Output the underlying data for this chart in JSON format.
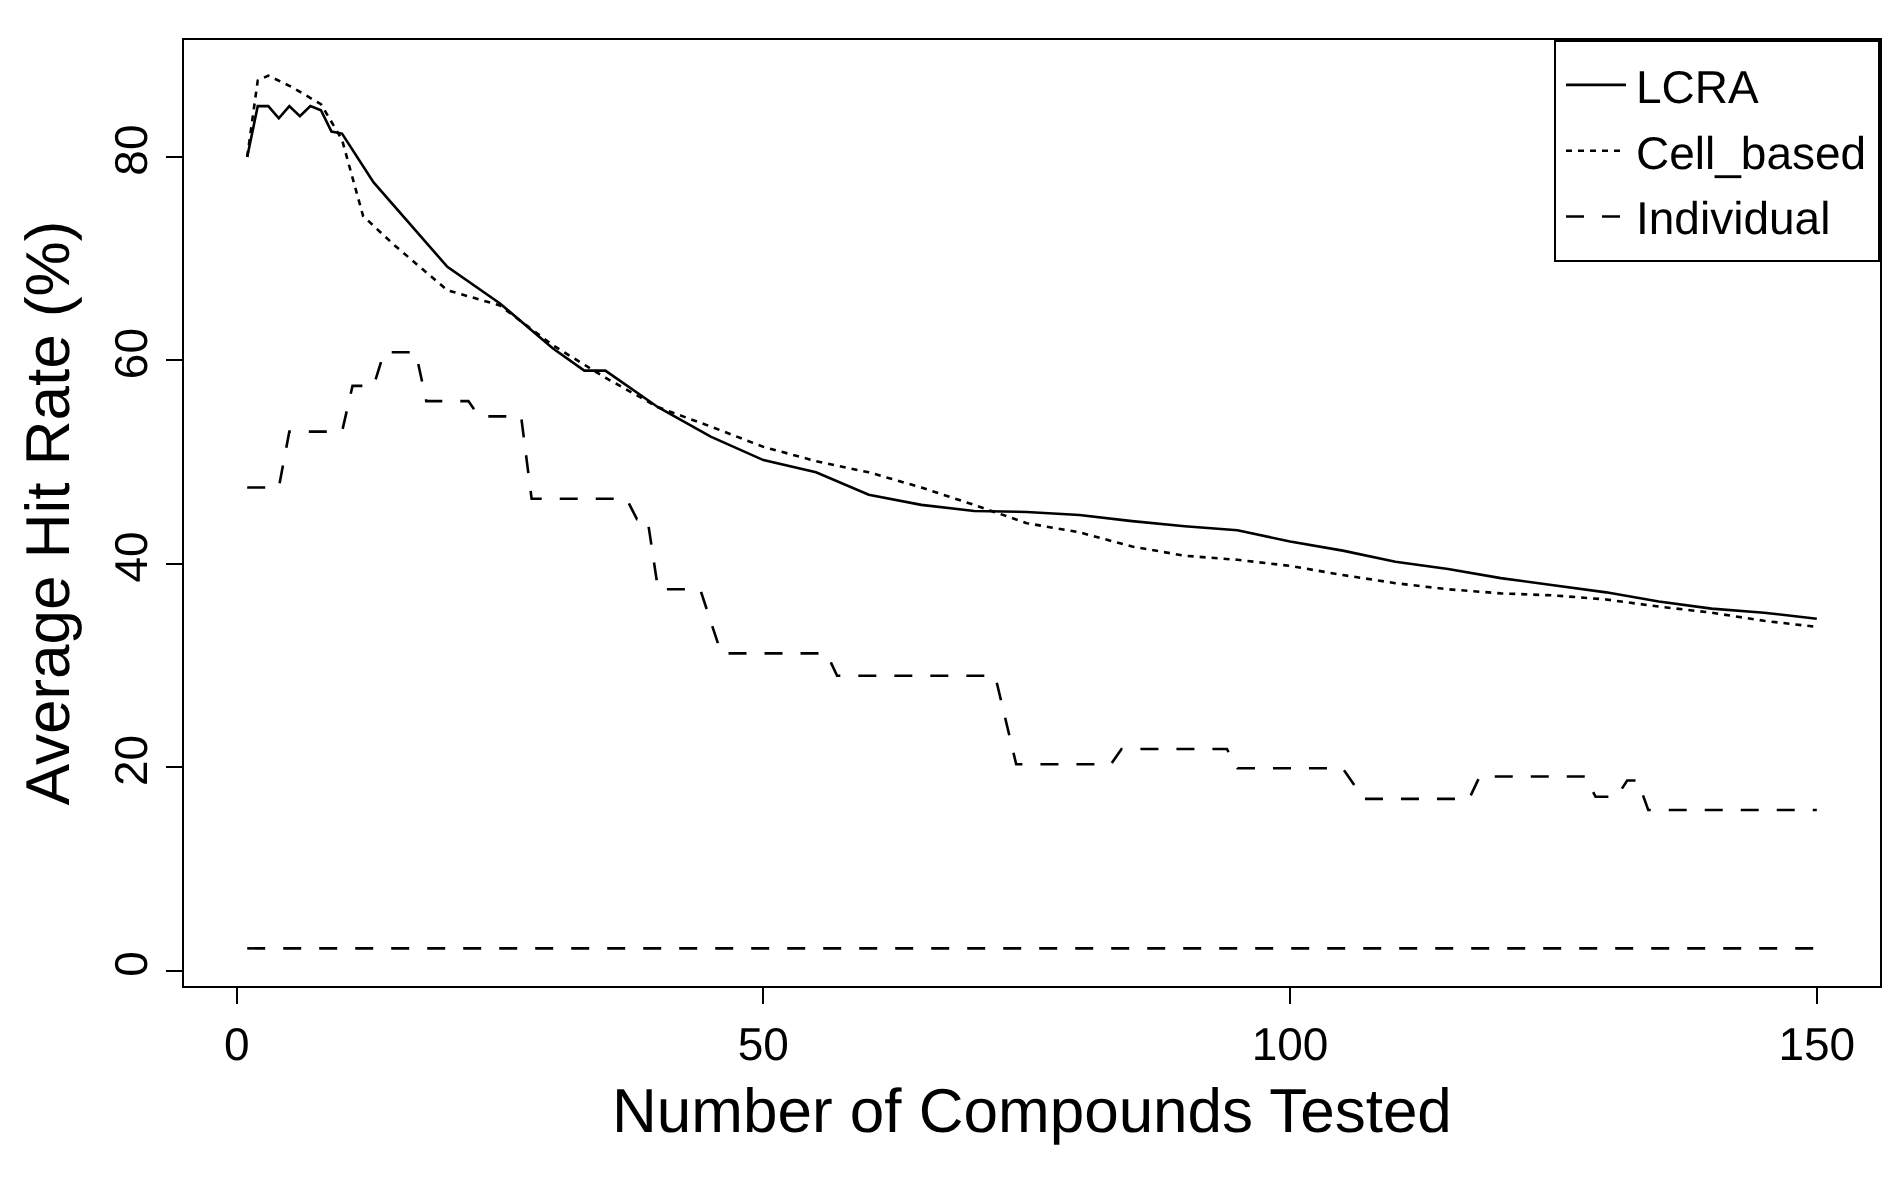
{
  "chart_data": {
    "type": "line",
    "xlabel": "Number of Compounds Tested",
    "ylabel": "Average Hit Rate (%)",
    "xlim": [
      -5,
      156
    ],
    "ylim": [
      -1.5,
      91.5
    ],
    "xticks": [
      0,
      50,
      100,
      150
    ],
    "yticks": [
      0,
      20,
      40,
      60,
      80
    ],
    "grid": false,
    "legend": "top right",
    "marker": "none",
    "series": [
      {
        "name": "LCRA",
        "color": "#000000",
        "line_style": "solid",
        "x": [
          1,
          2,
          3,
          4,
          5,
          6,
          7,
          8,
          9,
          10,
          13,
          20,
          25,
          30,
          33,
          35,
          40,
          45,
          50,
          55,
          60,
          65,
          70,
          75,
          80,
          85,
          90,
          95,
          100,
          105,
          110,
          115,
          120,
          125,
          130,
          135,
          140,
          145,
          150
        ],
        "values": [
          80,
          85,
          85,
          83.8,
          85,
          84,
          85,
          84.6,
          82.5,
          82.3,
          77.5,
          69.2,
          65.6,
          61.2,
          59,
          59,
          55.4,
          52.5,
          50.2,
          49,
          46.8,
          45.8,
          45.2,
          45.1,
          44.8,
          44.2,
          43.7,
          43.3,
          42.2,
          41.3,
          40.2,
          39.5,
          38.6,
          37.9,
          37.2,
          36.3,
          35.6,
          35.2,
          34.6
        ]
      },
      {
        "name": "Cell_based",
        "color": "#000000",
        "line_style": "dotted",
        "x": [
          1,
          2,
          3,
          5,
          8,
          10,
          12,
          15,
          20,
          25,
          30,
          35,
          40,
          45,
          50,
          55,
          60,
          65,
          70,
          75,
          80,
          85,
          90,
          95,
          100,
          105,
          110,
          115,
          120,
          125,
          130,
          135,
          140,
          145,
          150
        ],
        "values": [
          80,
          87.5,
          88,
          87,
          85.2,
          81.7,
          74.2,
          71.3,
          66.9,
          65.4,
          61.5,
          58.3,
          55.4,
          53.5,
          51.5,
          50.1,
          49,
          47.5,
          45.8,
          44,
          43.1,
          41.7,
          40.8,
          40.4,
          39.8,
          38.9,
          38.1,
          37.5,
          37.1,
          36.9,
          36.5,
          35.8,
          35.2,
          34.4,
          33.8
        ]
      },
      {
        "color": "#000000",
        "line_style": "dashed",
        "x": [
          1,
          4,
          5,
          10,
          11,
          13,
          14,
          17,
          18,
          22,
          23,
          27,
          28,
          37,
          38,
          39,
          40,
          44,
          46,
          56,
          57,
          72,
          74,
          83,
          84,
          94,
          95,
          105,
          107,
          117,
          118,
          128,
          129,
          131,
          132,
          133,
          134,
          150
        ],
        "values": [
          47.5,
          47.5,
          53,
          53,
          57.5,
          57.5,
          60.8,
          60.8,
          56,
          56,
          54.5,
          54.5,
          46.4,
          46.4,
          44.4,
          44.4,
          37.5,
          37.5,
          31.2,
          31.2,
          29,
          29,
          20.3,
          20.3,
          21.8,
          21.8,
          19.9,
          19.9,
          16.9,
          16.9,
          19.1,
          19.1,
          17.1,
          17.1,
          18.7,
          18.7,
          15.8,
          15.8
        ]
      },
      {
        "name": "Individual",
        "color": "#000000",
        "line_style": "dashed",
        "x": [
          1,
          150
        ],
        "values": [
          2.2,
          2.2
        ]
      }
    ]
  }
}
